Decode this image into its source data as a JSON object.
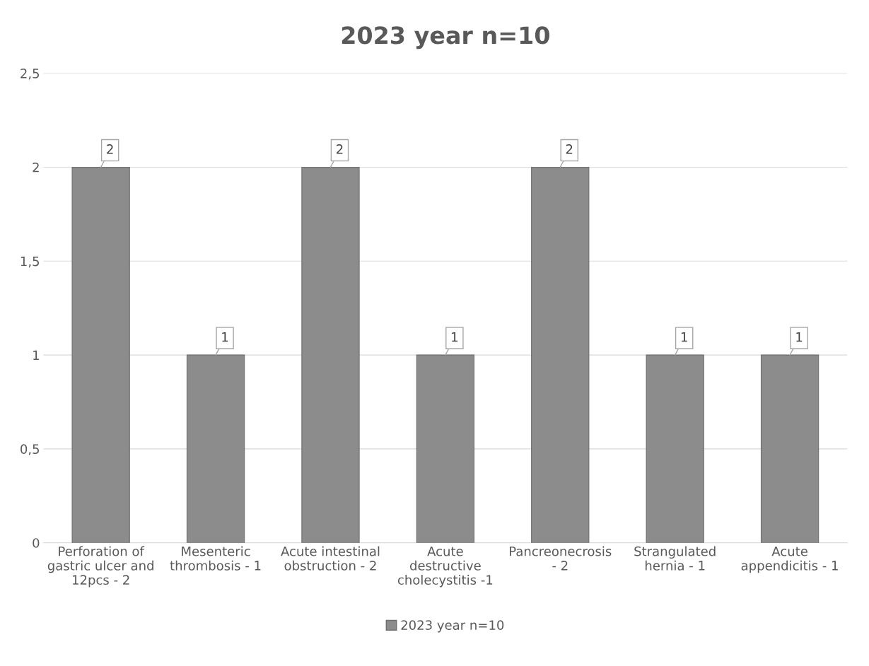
{
  "chart_data": {
    "type": "bar",
    "title": "2023 year n=10",
    "categories": [
      "Perforation of\ngastric ulcer and\n12pcs - 2",
      "Mesenteric\nthrombosis - 1",
      "Acute intestinal\nobstruction - 2",
      "Acute\ndestructive\ncholecystitis -1",
      "Pancreonecrosis\n- 2",
      "Strangulated\nhernia - 1",
      "Acute\nappendicitis - 1"
    ],
    "series": [
      {
        "name": "2023 year n=10",
        "color": "#8c8c8c",
        "values": [
          2,
          1,
          2,
          1,
          2,
          1,
          1
        ]
      }
    ],
    "ylim": [
      0,
      2.5
    ],
    "yticks": [
      {
        "value": 0,
        "label": "0"
      },
      {
        "value": 0.5,
        "label": "0,5"
      },
      {
        "value": 1,
        "label": "1"
      },
      {
        "value": 1.5,
        "label": "1,5"
      },
      {
        "value": 2,
        "label": "2"
      },
      {
        "value": 2.5,
        "label": "2,5"
      }
    ],
    "grid": "y",
    "legend": "bottom",
    "data_labels": true
  }
}
